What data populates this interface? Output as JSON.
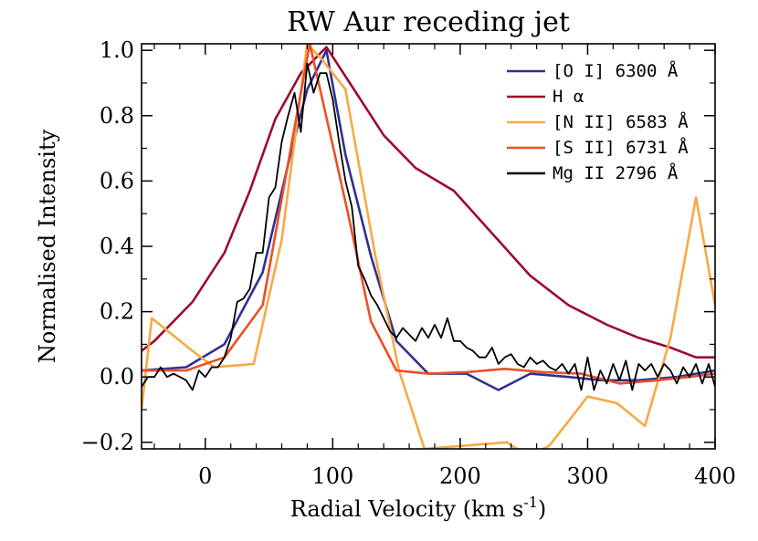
{
  "chart_data": {
    "type": "line",
    "title": "RW Aur receding jet",
    "xlabel": "Radial Velocity (km s",
    "xlabel_sup": "-1",
    "xlabel_close": ")",
    "ylabel": "Normalised Intensity",
    "xlim": [
      -50,
      400
    ],
    "ylim": [
      -0.22,
      1.02
    ],
    "x_ticks": [
      0,
      100,
      200,
      300,
      400
    ],
    "x_tick_labels": [
      "0",
      "100",
      "200",
      "300",
      "400"
    ],
    "y_ticks": [
      -0.2,
      0.0,
      0.2,
      0.4,
      0.6,
      0.8,
      1.0
    ],
    "y_tick_labels": [
      "−0.2",
      "0.0",
      "0.2",
      "0.4",
      "0.6",
      "0.8",
      "1.0"
    ],
    "legend_position": "top-right",
    "series": [
      {
        "name": "[O I] 6300 Å",
        "color": "#2e3192",
        "x": [
          -50,
          -15,
          15,
          45,
          68,
          80,
          95,
          110,
          130,
          150,
          175,
          205,
          230,
          255,
          285,
          310,
          340,
          370,
          400
        ],
        "y": [
          0.02,
          0.03,
          0.1,
          0.32,
          0.7,
          0.88,
          1.0,
          0.68,
          0.37,
          0.11,
          0.01,
          0.01,
          -0.04,
          0.01,
          0.0,
          -0.01,
          -0.01,
          0.0,
          0.02
        ]
      },
      {
        "name": "H α",
        "color": "#9b0c2e",
        "x": [
          -50,
          -40,
          -10,
          15,
          35,
          55,
          75,
          95,
          115,
          140,
          165,
          195,
          225,
          255,
          285,
          315,
          340,
          365,
          385,
          400
        ],
        "y": [
          0.08,
          0.11,
          0.23,
          0.38,
          0.57,
          0.79,
          0.93,
          1.01,
          0.89,
          0.74,
          0.64,
          0.57,
          0.44,
          0.31,
          0.22,
          0.16,
          0.12,
          0.09,
          0.06,
          0.06
        ]
      },
      {
        "name": "[N II] 6583 Å",
        "color": "#f7a945",
        "x": [
          -50,
          -42,
          -10,
          7,
          38,
          60,
          80,
          92,
          110,
          133,
          152,
          172,
          237,
          240,
          255,
          270,
          300,
          323,
          345,
          365,
          385,
          400
        ],
        "y": [
          -0.1,
          0.18,
          0.08,
          0.03,
          0.04,
          0.42,
          1.02,
          0.97,
          0.88,
          0.38,
          0.02,
          -0.22,
          -0.2,
          -0.21,
          -0.24,
          -0.21,
          -0.06,
          -0.08,
          -0.15,
          0.12,
          0.55,
          0.22
        ]
      },
      {
        "name": "[S II] 6731 Å",
        "color": "#ec4f28",
        "x": [
          -50,
          -15,
          15,
          45,
          68,
          82,
          100,
          112,
          130,
          150,
          175,
          205,
          235,
          265,
          295,
          325,
          355,
          380,
          400
        ],
        "y": [
          0.02,
          0.02,
          0.06,
          0.22,
          0.72,
          1.02,
          0.71,
          0.5,
          0.17,
          0.02,
          0.01,
          0.015,
          0.025,
          0.015,
          0.01,
          -0.02,
          -0.01,
          0.0,
          0.01
        ]
      },
      {
        "name": "Mg II 2796 Å",
        "color": "#000000",
        "x": [
          -50,
          -45,
          -40,
          -35,
          -30,
          -25,
          -20,
          -15,
          -10,
          -5,
          0,
          5,
          10,
          15,
          20,
          25,
          30,
          35,
          40,
          45,
          50,
          55,
          60,
          65,
          70,
          75,
          80,
          85,
          90,
          95,
          100,
          105,
          110,
          115,
          120,
          125,
          130,
          135,
          140,
          145,
          150,
          155,
          160,
          165,
          170,
          175,
          180,
          185,
          190,
          195,
          200,
          205,
          210,
          215,
          220,
          225,
          230,
          235,
          240,
          245,
          250,
          255,
          260,
          265,
          270,
          275,
          280,
          285,
          290,
          295,
          300,
          305,
          310,
          315,
          320,
          325,
          330,
          335,
          340,
          345,
          350,
          355,
          360,
          365,
          370,
          375,
          380,
          385,
          390,
          395,
          400
        ],
        "y": [
          -0.03,
          0.0,
          0.0,
          0.03,
          0.0,
          0.01,
          0.0,
          -0.01,
          -0.04,
          0.02,
          0.0,
          0.03,
          0.03,
          0.06,
          0.12,
          0.23,
          0.24,
          0.27,
          0.38,
          0.38,
          0.55,
          0.58,
          0.72,
          0.8,
          0.87,
          0.75,
          0.96,
          0.87,
          0.93,
          0.93,
          0.85,
          0.72,
          0.6,
          0.52,
          0.34,
          0.3,
          0.25,
          0.22,
          0.18,
          0.14,
          0.12,
          0.15,
          0.13,
          0.11,
          0.15,
          0.12,
          0.16,
          0.12,
          0.18,
          0.11,
          0.11,
          0.09,
          0.08,
          0.06,
          0.06,
          0.09,
          0.04,
          0.06,
          0.07,
          0.04,
          0.03,
          0.06,
          0.04,
          0.05,
          0.03,
          0.02,
          0.04,
          0.01,
          0.04,
          -0.04,
          0.06,
          -0.04,
          0.02,
          -0.02,
          0.04,
          -0.01,
          0.05,
          -0.04,
          0.04,
          0.02,
          0.04,
          0.0,
          0.04,
          0.02,
          -0.02,
          0.03,
          0.0,
          0.04,
          -0.02,
          0.04,
          -0.03
        ]
      }
    ]
  }
}
